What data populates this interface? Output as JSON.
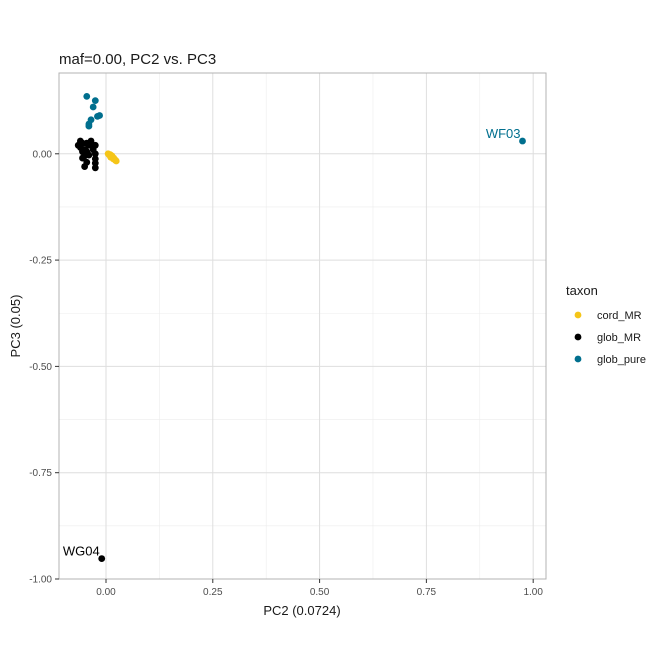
{
  "chart_data": {
    "type": "scatter",
    "title": "maf=0.00, PC2 vs. PC3",
    "xlabel": "PC2 (0.0724)",
    "ylabel": "PC3 (0.05)",
    "xlim": [
      -0.11,
      1.03
    ],
    "ylim": [
      -1.0,
      0.19
    ],
    "xticks": [
      0.0,
      0.25,
      0.5,
      0.75,
      1.0
    ],
    "xtick_labels": [
      "0.00",
      "0.25",
      "0.50",
      "0.75",
      "1.00"
    ],
    "yticks": [
      0.0,
      -0.25,
      -0.5,
      -0.75,
      -1.0
    ],
    "ytick_labels": [
      "0.00",
      "-0.25",
      "-0.50",
      "-0.75",
      "-1.00"
    ],
    "grid": true,
    "legend": {
      "title": "taxon",
      "position": "right"
    },
    "series": [
      {
        "name": "cord_MR",
        "color": "#F5C518",
        "points": [
          [
            0.005,
            0.0
          ],
          [
            0.008,
            -0.003
          ],
          [
            0.01,
            -0.002
          ],
          [
            0.012,
            -0.006
          ],
          [
            0.014,
            -0.005
          ],
          [
            0.016,
            -0.009
          ],
          [
            0.018,
            -0.01
          ],
          [
            0.02,
            -0.013
          ],
          [
            0.022,
            -0.015
          ],
          [
            0.024,
            -0.017
          ],
          [
            0.011,
            -0.008
          ],
          [
            0.017,
            -0.012
          ]
        ]
      },
      {
        "name": "glob_MR",
        "color": "#000000",
        "points": [
          [
            -0.065,
            0.02
          ],
          [
            -0.06,
            0.03
          ],
          [
            -0.055,
            0.025
          ],
          [
            -0.06,
            0.015
          ],
          [
            -0.05,
            0.01
          ],
          [
            -0.045,
            0.025
          ],
          [
            -0.04,
            0.02
          ],
          [
            -0.035,
            0.03
          ],
          [
            -0.03,
            0.018
          ],
          [
            -0.025,
            0.02
          ],
          [
            -0.045,
            0.005
          ],
          [
            -0.05,
            -0.005
          ],
          [
            -0.04,
            -0.003
          ],
          [
            -0.025,
            0.0
          ],
          [
            -0.025,
            -0.012
          ],
          [
            -0.045,
            -0.02
          ],
          [
            -0.025,
            -0.022
          ],
          [
            -0.055,
            0.005
          ],
          [
            -0.055,
            -0.01
          ],
          [
            -0.03,
            0.01
          ],
          [
            -0.05,
            -0.03
          ],
          [
            -0.025,
            -0.033
          ],
          [
            -0.01,
            -0.952
          ]
        ]
      },
      {
        "name": "glob_pure",
        "color": "#006F8E",
        "points": [
          [
            -0.045,
            0.135
          ],
          [
            -0.025,
            0.125
          ],
          [
            -0.03,
            0.11
          ],
          [
            -0.015,
            0.09
          ],
          [
            -0.02,
            0.088
          ],
          [
            -0.035,
            0.08
          ],
          [
            -0.04,
            0.07
          ],
          [
            -0.04,
            0.065
          ],
          [
            0.975,
            0.03
          ]
        ]
      }
    ],
    "annotations": [
      {
        "text": "WF03",
        "x": 0.975,
        "y": 0.03,
        "color": "#006F8E"
      },
      {
        "text": "WG04",
        "x": -0.01,
        "y": -0.952,
        "color": "#000000"
      }
    ]
  }
}
